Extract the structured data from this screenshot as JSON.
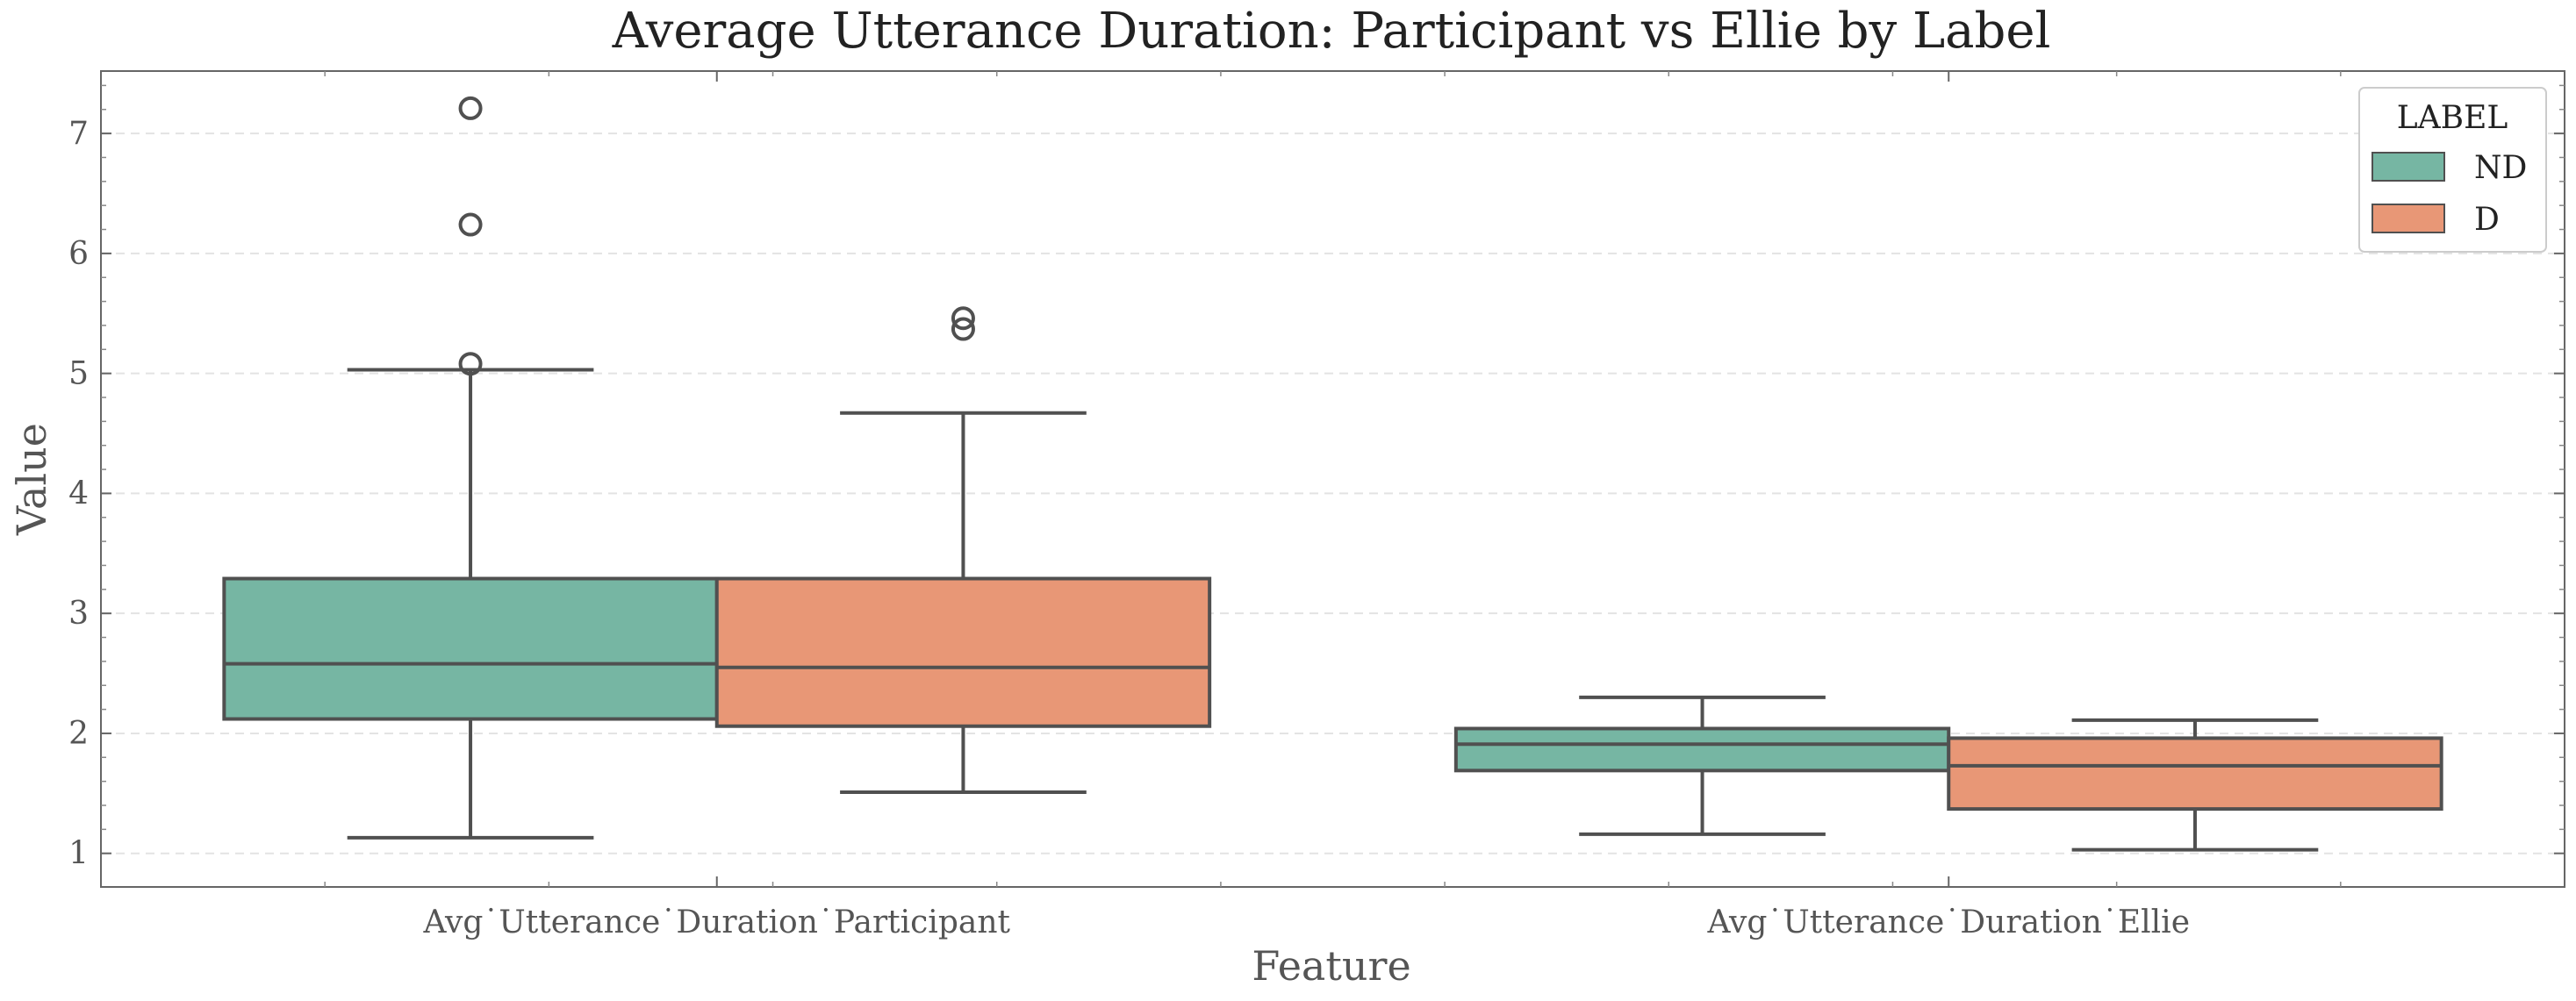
{
  "chart_data": {
    "type": "box",
    "title": "Average Utterance Duration: Participant vs Ellie by Label",
    "xlabel": "Feature",
    "ylabel": "Value",
    "categories": [
      "Avg˙Utterance˙Duration˙Participant",
      "Avg˙Utterance˙Duration˙Ellie"
    ],
    "yticks": [
      "1",
      "2",
      "3",
      "4",
      "5",
      "6",
      "7"
    ],
    "ylim": [
      0.72,
      7.52
    ],
    "grid": "horizontal dashed",
    "legend": {
      "title": "LABEL",
      "placement": "top-right",
      "entries": [
        "ND",
        "D"
      ]
    },
    "colors": {
      "ND": "#76b6a3",
      "D": "#e89776",
      "line": "#505050"
    },
    "series": [
      {
        "name": "ND",
        "boxes": [
          {
            "whisker_low": 1.13,
            "q1": 2.12,
            "median": 2.58,
            "q3": 3.29,
            "whisker_high": 5.03,
            "outliers": [
              5.08,
              6.24,
              7.21
            ]
          },
          {
            "whisker_low": 1.16,
            "q1": 1.69,
            "median": 1.91,
            "q3": 2.04,
            "whisker_high": 2.3,
            "outliers": []
          }
        ]
      },
      {
        "name": "D",
        "boxes": [
          {
            "whisker_low": 1.51,
            "q1": 2.06,
            "median": 2.55,
            "q3": 3.29,
            "whisker_high": 4.67,
            "outliers": [
              5.37,
              5.46
            ]
          },
          {
            "whisker_low": 1.03,
            "q1": 1.37,
            "median": 1.73,
            "q3": 1.96,
            "whisker_high": 2.11,
            "outliers": []
          }
        ]
      }
    ]
  }
}
